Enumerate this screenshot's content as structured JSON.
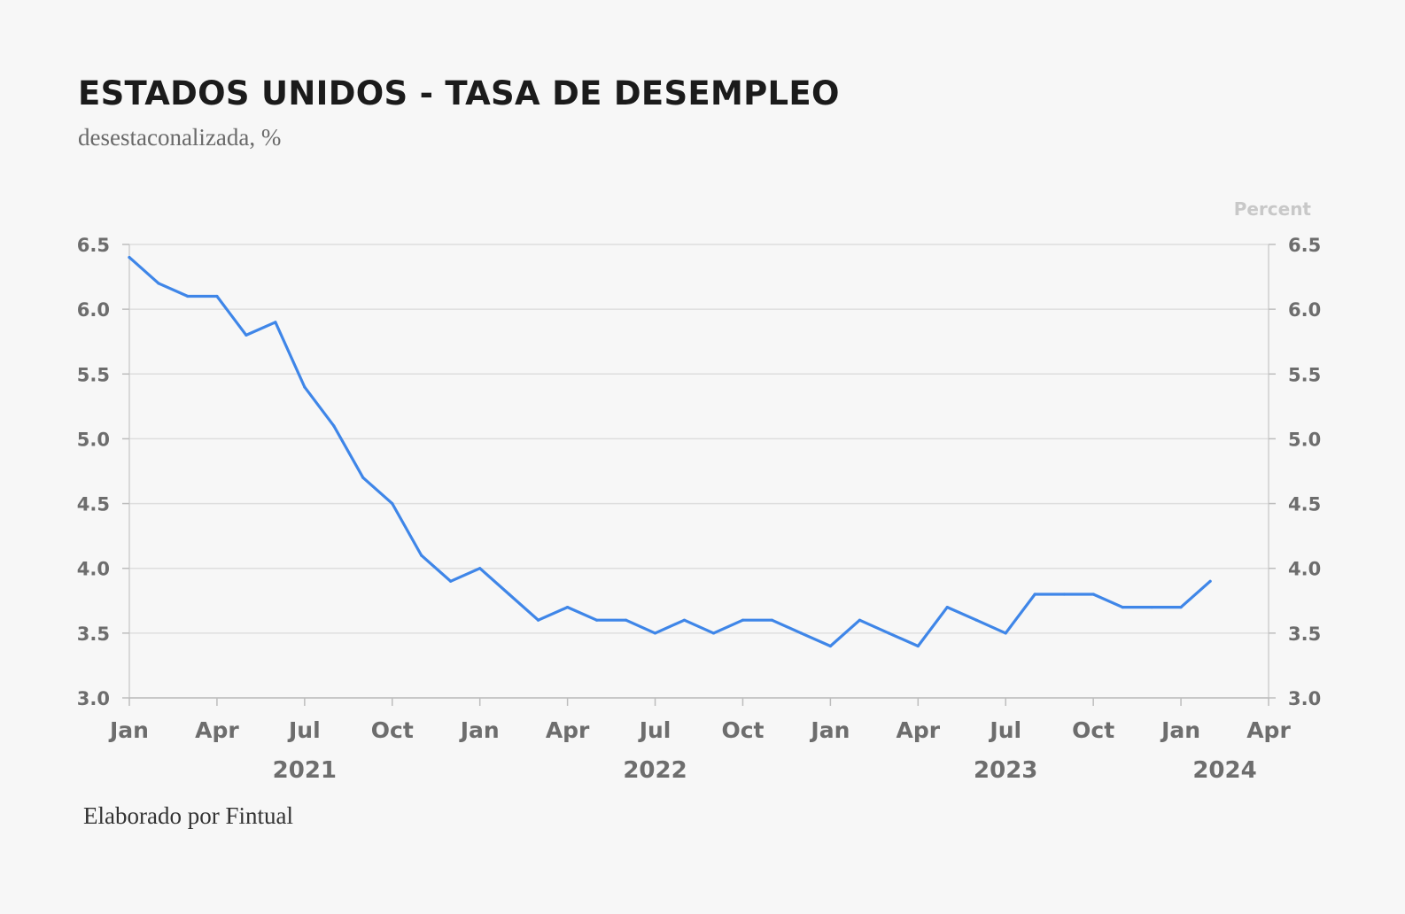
{
  "title": "ESTADOS UNIDOS - TASA DE DESEMPLEO",
  "subtitle": "desestaconalizada, %",
  "footer": "Elaborado por Fintual",
  "chart_data": {
    "type": "line",
    "title": "ESTADOS UNIDOS - TASA DE DESEMPLEO",
    "subtitle": "desestaconalizada, %",
    "y_unit_label": "Percent",
    "ylim": [
      3.0,
      6.5
    ],
    "y_ticks": [
      "3.0",
      "3.5",
      "4.0",
      "4.5",
      "5.0",
      "5.5",
      "6.0",
      "6.5"
    ],
    "y_axes": [
      "left",
      "right"
    ],
    "grid": true,
    "line_color": "#3f86e8",
    "x_ticks": [
      "Jan",
      "Apr",
      "Jul",
      "Oct",
      "Jan",
      "Apr",
      "Jul",
      "Oct",
      "Jan",
      "Apr",
      "Jul",
      "Oct",
      "Jan",
      "Apr"
    ],
    "x_years": [
      {
        "label": "2021",
        "under": "Jul"
      },
      {
        "label": "2022",
        "under": "Jul"
      },
      {
        "label": "2023",
        "under": "Jul"
      },
      {
        "label": "2024",
        "under": "Jan-Apr"
      }
    ],
    "series": [
      {
        "x": [
          "2021-01",
          "2021-02",
          "2021-03",
          "2021-04",
          "2021-05",
          "2021-06",
          "2021-07",
          "2021-08",
          "2021-09",
          "2021-10",
          "2021-11",
          "2021-12",
          "2022-01",
          "2022-02",
          "2022-03",
          "2022-04",
          "2022-05",
          "2022-06",
          "2022-07",
          "2022-08",
          "2022-09",
          "2022-10",
          "2022-11",
          "2022-12",
          "2023-01",
          "2023-02",
          "2023-03",
          "2023-04",
          "2023-05",
          "2023-06",
          "2023-07",
          "2023-08",
          "2023-09",
          "2023-10",
          "2023-11",
          "2023-12",
          "2024-01",
          "2024-02"
        ],
        "values": [
          6.4,
          6.2,
          6.1,
          6.1,
          5.8,
          5.9,
          5.4,
          5.1,
          4.7,
          4.5,
          4.1,
          3.9,
          4.0,
          3.8,
          3.6,
          3.7,
          3.6,
          3.6,
          3.5,
          3.6,
          3.5,
          3.6,
          3.6,
          3.5,
          3.4,
          3.6,
          3.5,
          3.4,
          3.7,
          3.6,
          3.5,
          3.8,
          3.8,
          3.8,
          3.7,
          3.7,
          3.7,
          3.9
        ]
      }
    ],
    "xlabel": "",
    "ylabel": ""
  }
}
